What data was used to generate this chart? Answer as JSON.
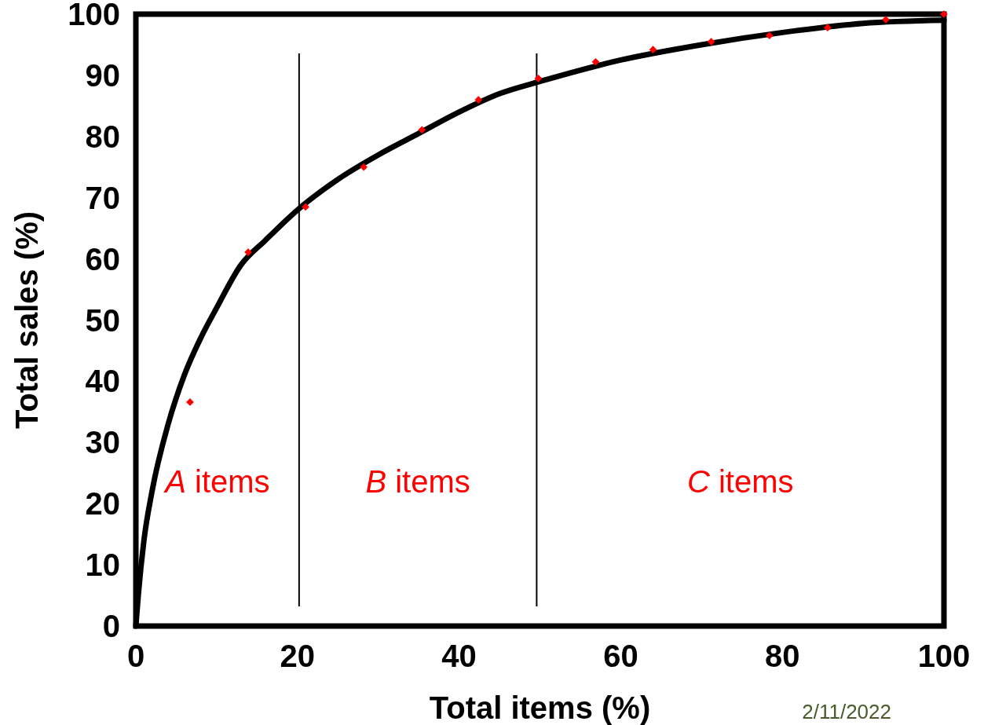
{
  "chart_data": {
    "type": "line",
    "xlabel": "Total items (%)",
    "ylabel": "Total sales (%)",
    "xlim": [
      0,
      100
    ],
    "ylim": [
      0,
      100
    ],
    "xticks": [
      0,
      20,
      40,
      60,
      80,
      100
    ],
    "yticks": [
      0,
      10,
      20,
      30,
      40,
      50,
      60,
      70,
      80,
      90,
      100
    ],
    "grid": false,
    "series": [
      {
        "color": "#000000",
        "marker": "none",
        "x": [
          0,
          0.3,
          1,
          2,
          4,
          6,
          8,
          10,
          13,
          16,
          20,
          25,
          30,
          35,
          40,
          45,
          50,
          60,
          70,
          80,
          90,
          100
        ],
        "values": [
          0,
          5,
          14,
          22,
          33,
          41,
          47,
          52,
          59,
          63,
          68,
          73,
          77,
          80.5,
          84,
          87,
          89,
          92.5,
          95,
          97,
          98.5,
          99
        ]
      },
      {
        "type": "scatter",
        "color": "#ff0000",
        "marker": "diamond",
        "x": [
          6.7,
          13.9,
          21,
          28.2,
          35.4,
          42.4,
          49.8,
          56.9,
          64,
          71.2,
          78.4,
          85.6,
          92.8,
          100
        ],
        "values": [
          36.6,
          61.1,
          68.5,
          75,
          81.1,
          86,
          89.5,
          92.2,
          94.2,
          95.5,
          96.5,
          97.8,
          99.1,
          100
        ]
      }
    ],
    "ref_lines": [
      {
        "axis": "x",
        "value": 20.2,
        "color": "#000000"
      },
      {
        "axis": "x",
        "value": 49.6,
        "color": "#000000"
      }
    ],
    "annotations": [
      "A items",
      "B items",
      "C items",
      "2/11/2022"
    ]
  }
}
